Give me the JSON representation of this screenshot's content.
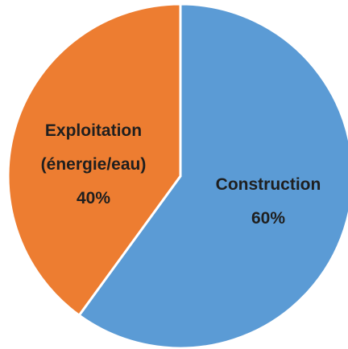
{
  "chart_data": {
    "type": "pie",
    "slices": [
      {
        "label_lines": [
          "Construction"
        ],
        "percent_label": "60%",
        "value": 60,
        "color": "#5b9bd5"
      },
      {
        "label_lines": [
          "Exploitation",
          "(énergie/eau)"
        ],
        "percent_label": "40%",
        "value": 40,
        "color": "#ed7d31"
      }
    ]
  }
}
